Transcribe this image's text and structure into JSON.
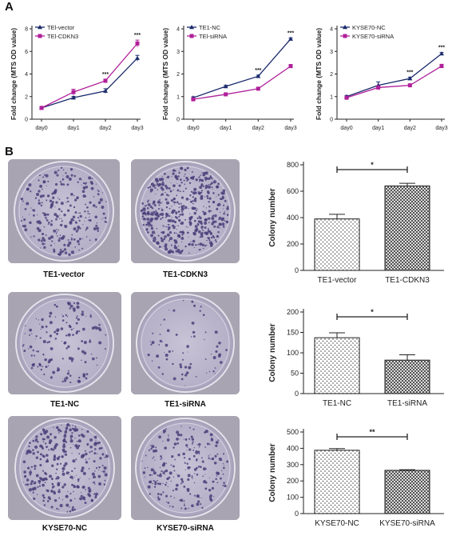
{
  "panels": {
    "a": "A",
    "b": "B"
  },
  "colors": {
    "series1": "#1a2a6c",
    "series2": "#b0209a",
    "dish_stain": "#4a3f7a"
  },
  "chart_data": [
    {
      "type": "line",
      "ylabel": "Fold change (MTS OD value)",
      "x": [
        "day0",
        "day1",
        "day2",
        "day3"
      ],
      "ylim": [
        0,
        8
      ],
      "yticks": [
        0,
        2,
        4,
        6,
        8
      ],
      "series": [
        {
          "name": "TEl-vector",
          "values": [
            1.0,
            1.9,
            2.5,
            5.4
          ],
          "errors": [
            0.1,
            0.12,
            0.2,
            0.25
          ],
          "marker": "triangle"
        },
        {
          "name": "TEl-CDKN3",
          "values": [
            1.0,
            2.4,
            3.4,
            6.7
          ],
          "errors": [
            0.1,
            0.25,
            0.15,
            0.3
          ],
          "marker": "square"
        }
      ],
      "annotations": [
        {
          "x": "day2",
          "text": "***"
        },
        {
          "x": "day3",
          "text": "***"
        }
      ]
    },
    {
      "type": "line",
      "ylabel": "Fold change (MTS OD value)",
      "x": [
        "day0",
        "day1",
        "day2",
        "day3"
      ],
      "ylim": [
        0,
        4
      ],
      "yticks": [
        0,
        1,
        2,
        3,
        4
      ],
      "series": [
        {
          "name": "TE1-NC",
          "values": [
            0.95,
            1.45,
            1.9,
            3.55
          ],
          "errors": [
            0.04,
            0.05,
            0.05,
            0.05
          ],
          "marker": "triangle"
        },
        {
          "name": "TEl-siRNA",
          "values": [
            0.88,
            1.1,
            1.35,
            2.35
          ],
          "errors": [
            0.04,
            0.05,
            0.05,
            0.07
          ],
          "marker": "square"
        }
      ],
      "annotations": [
        {
          "x": "day2",
          "text": "***"
        },
        {
          "x": "day3",
          "text": "***"
        }
      ]
    },
    {
      "type": "line",
      "ylabel": "Fold change (MTS OD value)",
      "x": [
        "day0",
        "day1",
        "day2",
        "day3"
      ],
      "ylim": [
        0,
        4
      ],
      "yticks": [
        0,
        1,
        2,
        3,
        4
      ],
      "series": [
        {
          "name": "KYSE70-NC",
          "values": [
            1.0,
            1.5,
            1.8,
            2.9
          ],
          "errors": [
            0.05,
            0.15,
            0.06,
            0.05
          ],
          "marker": "triangle"
        },
        {
          "name": "KYSE70-siRNA",
          "values": [
            0.95,
            1.4,
            1.5,
            2.35
          ],
          "errors": [
            0.05,
            0.08,
            0.05,
            0.08
          ],
          "marker": "square"
        }
      ],
      "annotations": [
        {
          "x": "day2",
          "text": "***"
        },
        {
          "x": "day3",
          "text": "***"
        }
      ]
    },
    {
      "type": "bar",
      "ylabel": "Colony number",
      "categories": [
        "TE1-vector",
        "TE1-CDKN3"
      ],
      "values": [
        390,
        640
      ],
      "errors": [
        35,
        20
      ],
      "ylim": [
        0,
        800
      ],
      "yticks": [
        0,
        200,
        400,
        600,
        800
      ],
      "patterns": [
        "dots",
        "crosshatch"
      ],
      "significance": "*"
    },
    {
      "type": "bar",
      "ylabel": "Colony number",
      "categories": [
        "TE1-NC",
        "TE1-siRNA"
      ],
      "values": [
        137,
        82
      ],
      "errors": [
        12,
        13
      ],
      "ylim": [
        0,
        200
      ],
      "yticks": [
        0,
        50,
        100,
        150,
        200
      ],
      "patterns": [
        "dots",
        "crosshatch"
      ],
      "significance": "*"
    },
    {
      "type": "bar",
      "ylabel": "Colony number",
      "categories": [
        "KYSE70-NC",
        "KYSE70-siRNA"
      ],
      "values": [
        388,
        265
      ],
      "errors": [
        10,
        4
      ],
      "ylim": [
        0,
        500
      ],
      "yticks": [
        0,
        100,
        200,
        300,
        400,
        500
      ],
      "patterns": [
        "dots",
        "crosshatch"
      ],
      "significance": "**"
    }
  ],
  "dishes": [
    {
      "caption": "TE1-vector",
      "density": 260
    },
    {
      "caption": "TE1-CDKN3",
      "density": 520
    },
    {
      "caption": "TE1-NC",
      "density": 150
    },
    {
      "caption": "TE1-siRNA",
      "density": 70
    },
    {
      "caption": "KYSE70-NC",
      "density": 330
    },
    {
      "caption": "KYSE70-siRNA",
      "density": 230
    }
  ]
}
